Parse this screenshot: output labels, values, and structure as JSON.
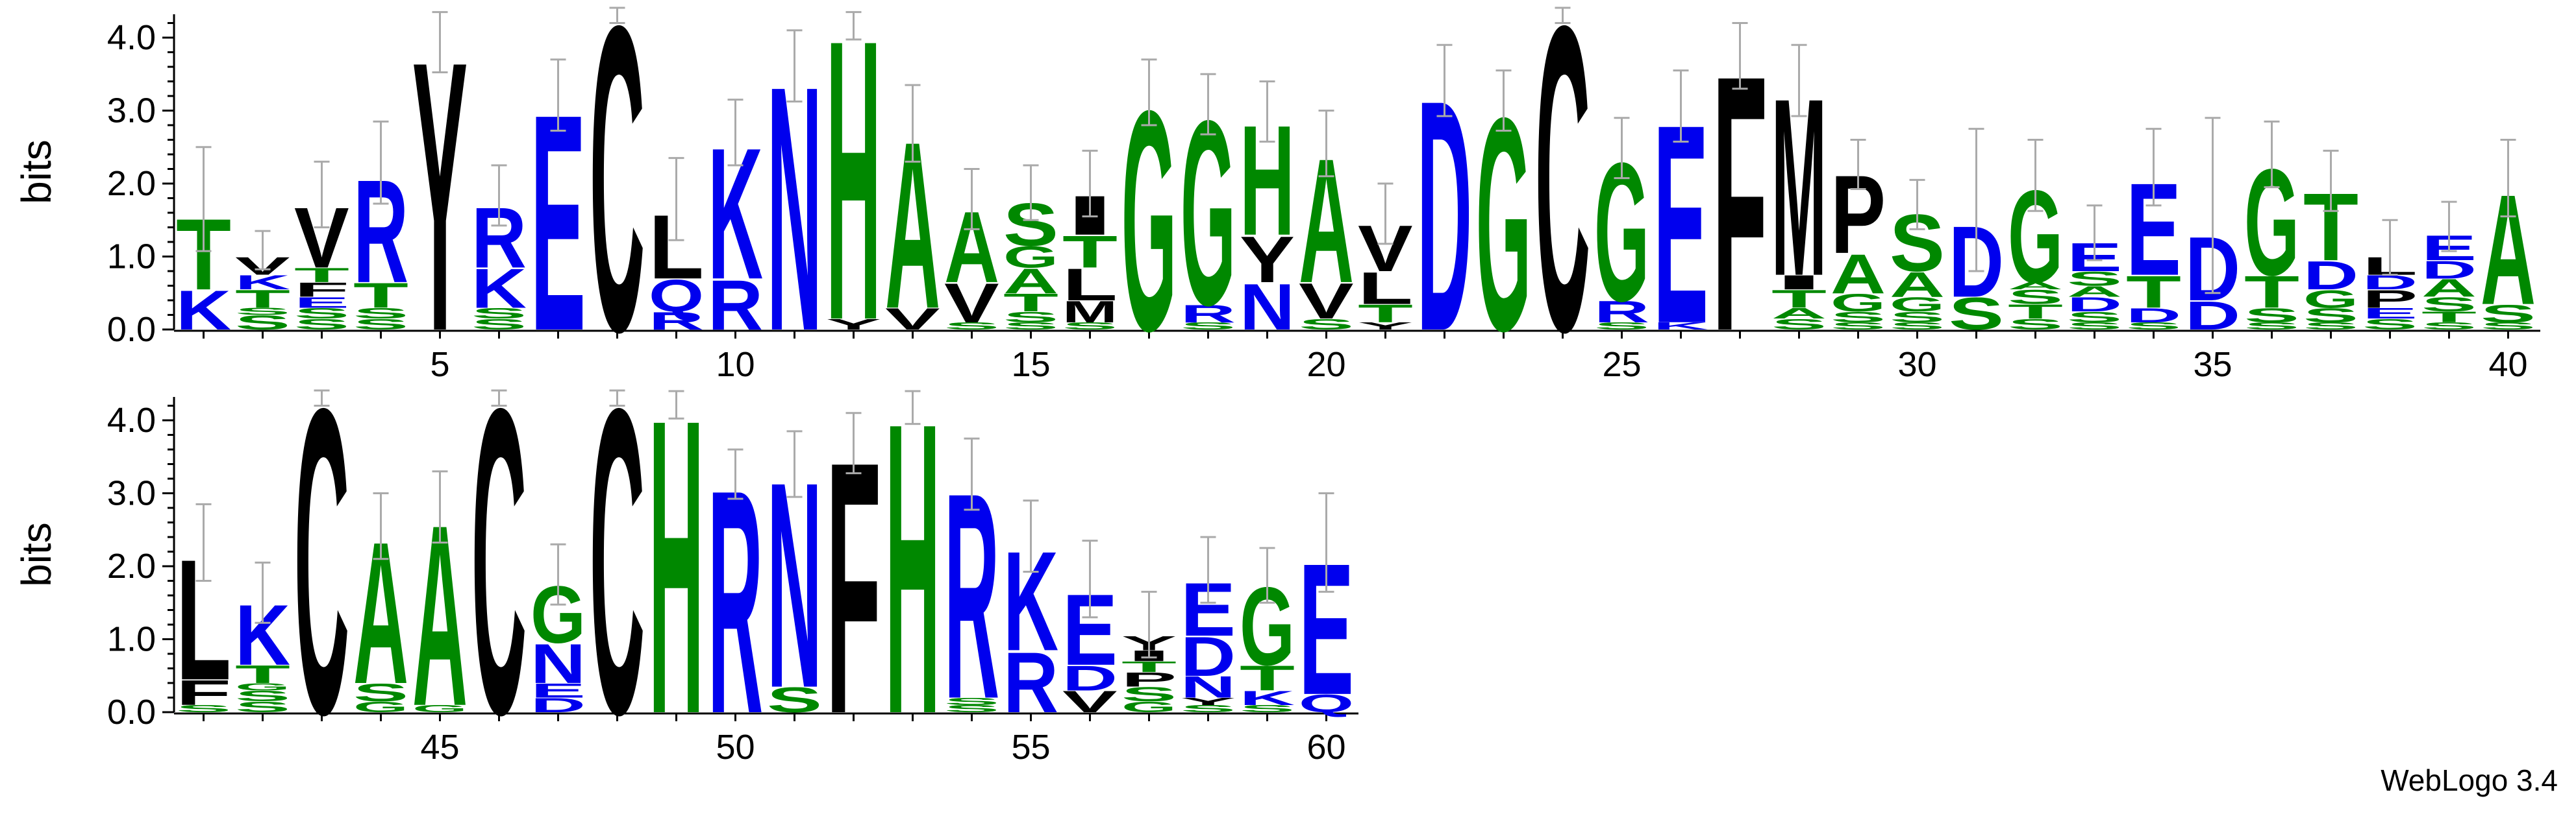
{
  "chart_data": {
    "type": "sequence_logo",
    "ylabel": "bits",
    "ylim": [
      0,
      4.32
    ],
    "yticks": [
      0.0,
      1.0,
      2.0,
      3.0,
      4.0
    ],
    "row1_xticks": [
      5,
      10,
      15,
      20,
      25,
      30,
      35,
      40
    ],
    "row2_xticks": [
      45,
      50,
      55,
      60
    ],
    "color_scheme": {
      "blue_residues": "#0000ee",
      "green_residues": "#008800",
      "black_residues": "#000000"
    },
    "positions": [
      {
        "pos": 1,
        "err": 0.95,
        "stack": [
          [
            "K",
            0.55
          ],
          [
            "T",
            1.0
          ]
        ]
      },
      {
        "pos": 2,
        "err": 0.35,
        "stack": [
          [
            "X",
            0.2
          ],
          [
            "S",
            0.1
          ],
          [
            "T",
            0.25
          ],
          [
            "K",
            0.2
          ],
          [
            "V",
            0.25
          ]
        ]
      },
      {
        "pos": 3,
        "err": 0.6,
        "stack": [
          [
            "X",
            0.15
          ],
          [
            "S",
            0.15
          ],
          [
            "E",
            0.15
          ],
          [
            "F",
            0.2
          ],
          [
            "T",
            0.2
          ],
          [
            "V",
            0.85
          ]
        ]
      },
      {
        "pos": 4,
        "err": 0.75,
        "stack": [
          [
            "X",
            0.15
          ],
          [
            "S",
            0.15
          ],
          [
            "T",
            0.35
          ],
          [
            "R",
            1.45
          ]
        ]
      },
      {
        "pos": 5,
        "err": 0.55,
        "stack": [
          [
            "Y",
            3.8
          ]
        ]
      },
      {
        "pos": 6,
        "err": 0.55,
        "stack": [
          [
            "X",
            0.15
          ],
          [
            "S",
            0.15
          ],
          [
            "K",
            0.55
          ],
          [
            "R",
            0.85
          ]
        ]
      },
      {
        "pos": 7,
        "err": 0.65,
        "stack": [
          [
            "E",
            3.05
          ]
        ]
      },
      {
        "pos": 8,
        "err": 0.2,
        "stack": [
          [
            "C",
            4.3
          ]
        ]
      },
      {
        "pos": 9,
        "err": 0.75,
        "stack": [
          [
            "R",
            0.25
          ],
          [
            "Q",
            0.45
          ],
          [
            "L",
            0.9
          ]
        ]
      },
      {
        "pos": 10,
        "err": 0.6,
        "stack": [
          [
            "R",
            0.7
          ],
          [
            "K",
            1.85
          ]
        ]
      },
      {
        "pos": 11,
        "err": 0.65,
        "stack": [
          [
            "N",
            3.45
          ]
        ]
      },
      {
        "pos": 12,
        "err": 0.25,
        "stack": [
          [
            "Y",
            0.15
          ],
          [
            "H",
            3.95
          ]
        ]
      },
      {
        "pos": 13,
        "err": 0.7,
        "stack": [
          [
            "V",
            0.3
          ],
          [
            "A",
            2.35
          ]
        ]
      },
      {
        "pos": 14,
        "err": 0.55,
        "stack": [
          [
            "X",
            0.1
          ],
          [
            "V",
            0.55
          ],
          [
            "A",
            1.0
          ]
        ]
      },
      {
        "pos": 15,
        "err": 0.5,
        "stack": [
          [
            "X",
            0.1
          ],
          [
            "S",
            0.15
          ],
          [
            "T",
            0.25
          ],
          [
            "A",
            0.35
          ],
          [
            "G",
            0.3
          ],
          [
            "S",
            0.6
          ]
        ]
      },
      {
        "pos": 16,
        "err": 0.6,
        "stack": [
          [
            "X",
            0.1
          ],
          [
            "M",
            0.3
          ],
          [
            "L",
            0.45
          ],
          [
            "T",
            0.45
          ],
          [
            "I",
            0.55
          ]
        ]
      },
      {
        "pos": 17,
        "err": 0.6,
        "stack": [
          [
            "G",
            3.1
          ]
        ]
      },
      {
        "pos": 18,
        "err": 0.55,
        "stack": [
          [
            "X",
            0.1
          ],
          [
            "R",
            0.25
          ],
          [
            "G",
            2.6
          ]
        ]
      },
      {
        "pos": 19,
        "err": 0.55,
        "stack": [
          [
            "N",
            0.65
          ],
          [
            "Y",
            0.65
          ],
          [
            "H",
            1.55
          ]
        ]
      },
      {
        "pos": 20,
        "err": 0.6,
        "stack": [
          [
            "X",
            0.15
          ],
          [
            "V",
            0.5
          ],
          [
            "A",
            1.75
          ]
        ]
      },
      {
        "pos": 21,
        "err": 0.55,
        "stack": [
          [
            "Y",
            0.1
          ],
          [
            "T",
            0.25
          ],
          [
            "L",
            0.45
          ],
          [
            "V",
            0.65
          ]
        ]
      },
      {
        "pos": 22,
        "err": 0.65,
        "stack": [
          [
            "D",
            3.25
          ]
        ]
      },
      {
        "pos": 23,
        "err": 0.55,
        "stack": [
          [
            "G",
            3.0
          ]
        ]
      },
      {
        "pos": 24,
        "err": 0.2,
        "stack": [
          [
            "C",
            4.3
          ]
        ]
      },
      {
        "pos": 25,
        "err": 0.55,
        "stack": [
          [
            "X",
            0.1
          ],
          [
            "R",
            0.3
          ],
          [
            "G",
            1.95
          ]
        ]
      },
      {
        "pos": 26,
        "err": 0.65,
        "stack": [
          [
            "K",
            0.1
          ],
          [
            "E",
            2.8
          ]
        ]
      },
      {
        "pos": 27,
        "err": 0.6,
        "stack": [
          [
            "F",
            3.6
          ]
        ]
      },
      {
        "pos": 28,
        "err": 0.65,
        "stack": [
          [
            "X",
            0.15
          ],
          [
            "A",
            0.15
          ],
          [
            "T",
            0.25
          ],
          [
            "I",
            0.2
          ],
          [
            "M",
            2.5
          ]
        ]
      },
      {
        "pos": 29,
        "err": 0.45,
        "stack": [
          [
            "X",
            0.1
          ],
          [
            "S",
            0.15
          ],
          [
            "G",
            0.25
          ],
          [
            "A",
            0.55
          ],
          [
            "P",
            1.1
          ]
        ]
      },
      {
        "pos": 30,
        "err": 0.45,
        "stack": [
          [
            "X",
            0.1
          ],
          [
            "S",
            0.15
          ],
          [
            "G",
            0.2
          ],
          [
            "A",
            0.35
          ],
          [
            "S",
            0.8
          ]
        ]
      },
      {
        "pos": 31,
        "err": 1.3,
        "stack": [
          [
            "S",
            0.45
          ],
          [
            "D",
            1.0
          ]
        ]
      },
      {
        "pos": 32,
        "err": 0.65,
        "stack": [
          [
            "X",
            0.15
          ],
          [
            "T",
            0.2
          ],
          [
            "S",
            0.2
          ],
          [
            "A",
            0.1
          ],
          [
            "G",
            1.3
          ]
        ]
      },
      {
        "pos": 33,
        "err": 0.5,
        "stack": [
          [
            "X",
            0.1
          ],
          [
            "S",
            0.15
          ],
          [
            "D",
            0.2
          ],
          [
            "A",
            0.15
          ],
          [
            "S",
            0.2
          ],
          [
            "E",
            0.4
          ]
        ]
      },
      {
        "pos": 34,
        "err": 0.7,
        "stack": [
          [
            "X",
            0.1
          ],
          [
            "D",
            0.2
          ],
          [
            "T",
            0.45
          ],
          [
            "E",
            1.3
          ]
        ]
      },
      {
        "pos": 35,
        "err": 1.6,
        "stack": [
          [
            "D",
            0.4
          ],
          [
            "D",
            0.9
          ]
        ]
      },
      {
        "pos": 36,
        "err": 0.6,
        "stack": [
          [
            "X",
            0.1
          ],
          [
            "S",
            0.2
          ],
          [
            "T",
            0.45
          ],
          [
            "G",
            1.5
          ]
        ]
      },
      {
        "pos": 37,
        "err": 0.55,
        "stack": [
          [
            "X",
            0.1
          ],
          [
            "S",
            0.2
          ],
          [
            "G",
            0.25
          ],
          [
            "D",
            0.4
          ],
          [
            "T",
            0.95
          ]
        ]
      },
      {
        "pos": 38,
        "err": 0.5,
        "stack": [
          [
            "X",
            0.15
          ],
          [
            "E",
            0.15
          ],
          [
            "P",
            0.25
          ],
          [
            "D",
            0.2
          ],
          [
            "L",
            0.25
          ]
        ]
      },
      {
        "pos": 39,
        "err": 0.45,
        "stack": [
          [
            "X",
            0.1
          ],
          [
            "T",
            0.15
          ],
          [
            "S",
            0.2
          ],
          [
            "A",
            0.25
          ],
          [
            "D",
            0.25
          ],
          [
            "E",
            0.35
          ]
        ]
      },
      {
        "pos": 40,
        "err": 0.7,
        "stack": [
          [
            "X",
            0.1
          ],
          [
            "S",
            0.25
          ],
          [
            "A",
            1.55
          ]
        ]
      },
      {
        "pos": 41,
        "err": 0.7,
        "stack": [
          [
            "X",
            0.1
          ],
          [
            "F",
            0.35
          ],
          [
            "L",
            1.7
          ]
        ]
      },
      {
        "pos": 42,
        "err": 0.55,
        "stack": [
          [
            "X",
            0.15
          ],
          [
            "S",
            0.15
          ],
          [
            "G",
            0.1
          ],
          [
            "T",
            0.25
          ],
          [
            "K",
            0.85
          ]
        ]
      },
      {
        "pos": 43,
        "err": 0.2,
        "stack": [
          [
            "C",
            4.3
          ]
        ]
      },
      {
        "pos": 44,
        "err": 0.6,
        "stack": [
          [
            "G",
            0.15
          ],
          [
            "S",
            0.25
          ],
          [
            "A",
            2.0
          ]
        ]
      },
      {
        "pos": 45,
        "err": 0.65,
        "stack": [
          [
            "G",
            0.1
          ],
          [
            "A",
            2.55
          ]
        ]
      },
      {
        "pos": 46,
        "err": 0.2,
        "stack": [
          [
            "C",
            4.3
          ]
        ]
      },
      {
        "pos": 47,
        "err": 0.55,
        "stack": [
          [
            "D",
            0.2
          ],
          [
            "E",
            0.2
          ],
          [
            "N",
            0.55
          ],
          [
            "G",
            0.8
          ]
        ]
      },
      {
        "pos": 48,
        "err": 0.2,
        "stack": [
          [
            "C",
            4.3
          ]
        ]
      },
      {
        "pos": 49,
        "err": 0.25,
        "stack": [
          [
            "H",
            4.15
          ]
        ]
      },
      {
        "pos": 50,
        "err": 0.45,
        "stack": [
          [
            "R",
            3.15
          ]
        ]
      },
      {
        "pos": 51,
        "err": 0.6,
        "stack": [
          [
            "S",
            0.35
          ],
          [
            "N",
            2.9
          ]
        ]
      },
      {
        "pos": 52,
        "err": 0.55,
        "stack": [
          [
            "F",
            3.55
          ]
        ]
      },
      {
        "pos": 53,
        "err": 0.3,
        "stack": [
          [
            "H",
            4.1
          ]
        ]
      },
      {
        "pos": 54,
        "err": 0.65,
        "stack": [
          [
            "X",
            0.1
          ],
          [
            "S",
            0.1
          ],
          [
            "R",
            2.9
          ]
        ]
      },
      {
        "pos": 55,
        "err": 0.65,
        "stack": [
          [
            "R",
            0.85
          ],
          [
            "K",
            1.4
          ]
        ]
      },
      {
        "pos": 56,
        "err": 0.7,
        "stack": [
          [
            "V",
            0.3
          ],
          [
            "D",
            0.35
          ],
          [
            "E",
            1.0
          ]
        ]
      },
      {
        "pos": 57,
        "err": 0.6,
        "stack": [
          [
            "G",
            0.15
          ],
          [
            "S",
            0.2
          ],
          [
            "P",
            0.2
          ],
          [
            "T",
            0.15
          ],
          [
            "I",
            0.15
          ],
          [
            "Y",
            0.2
          ]
        ]
      },
      {
        "pos": 58,
        "err": 0.6,
        "stack": [
          [
            "X",
            0.1
          ],
          [
            "Y",
            0.1
          ],
          [
            "N",
            0.3
          ],
          [
            "D",
            0.55
          ],
          [
            "E",
            0.75
          ]
        ]
      },
      {
        "pos": 59,
        "err": 0.5,
        "stack": [
          [
            "X",
            0.1
          ],
          [
            "K",
            0.2
          ],
          [
            "T",
            0.35
          ],
          [
            "G",
            1.1
          ]
        ]
      },
      {
        "pos": 60,
        "err": 0.9,
        "stack": [
          [
            "Q",
            0.25
          ],
          [
            "E",
            1.85
          ]
        ]
      }
    ]
  },
  "footer": "WebLogo 3.4"
}
